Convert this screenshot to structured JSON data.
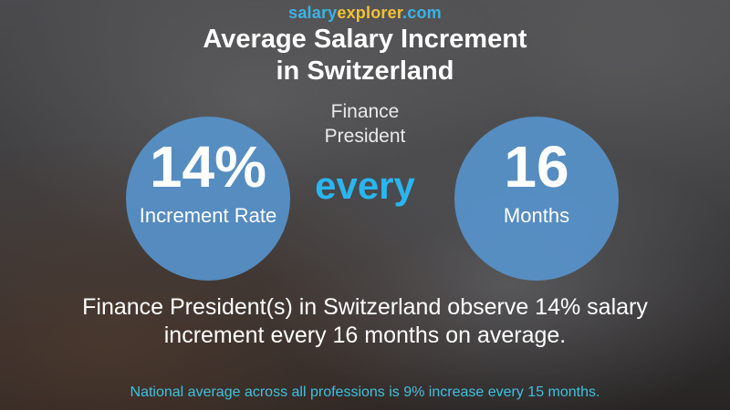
{
  "logo": {
    "part1": "salary",
    "part2": "explorer",
    "part3": ".com"
  },
  "header": {
    "title_line1": "Average Salary Increment",
    "title_line2": "in Switzerland",
    "category": "Finance",
    "job_title": "President"
  },
  "increment": {
    "value": "14%",
    "label": "Increment Rate"
  },
  "connector": "every",
  "period": {
    "value": "16",
    "label": "Months"
  },
  "description_line1": "Finance President(s) in Switzerland observe 14% salary",
  "description_line2": "increment every 16 months on average.",
  "footer": "National average across all professions is 9% increase every 15 months.",
  "colors": {
    "circle": "#5896d2",
    "accent_blue": "#29b6f0",
    "logo_yellow": "#f2c230",
    "footer_teal": "#3fc1e0"
  }
}
